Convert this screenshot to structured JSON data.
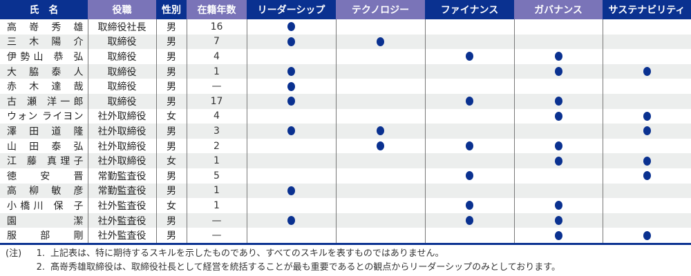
{
  "headers": [
    "氏　名",
    "役職",
    "性別",
    "在籍年数",
    "リーダーシップ",
    "テクノロジー",
    "ファイナンス",
    "ガバナンス",
    "サステナビリティ"
  ],
  "skills": [
    "leadership",
    "technology",
    "finance",
    "governance",
    "sustainability"
  ],
  "colors": {
    "header_dark": "#0a3190",
    "header_light": "#7a74b8",
    "dot": "#0a3190"
  },
  "rows": [
    {
      "name": "高 嵜 秀 雄",
      "role": "取締役社長",
      "gender": "男",
      "years": "16",
      "skills": [
        1,
        0,
        0,
        0,
        0
      ]
    },
    {
      "name": "三 木 陽 介",
      "role": "取締役",
      "gender": "男",
      "years": "7",
      "skills": [
        1,
        1,
        0,
        0,
        0
      ]
    },
    {
      "name": "伊勢山 恭 弘",
      "role": "取締役",
      "gender": "男",
      "years": "4",
      "skills": [
        0,
        0,
        1,
        1,
        0
      ]
    },
    {
      "name": "大 脇 泰 人",
      "role": "取締役",
      "gender": "男",
      "years": "1",
      "skills": [
        1,
        0,
        0,
        1,
        1
      ]
    },
    {
      "name": "赤 木 達 哉",
      "role": "取締役",
      "gender": "男",
      "years": "—",
      "skills": [
        1,
        0,
        0,
        0,
        0
      ]
    },
    {
      "name": "古 瀬 洋一郎",
      "role": "取締役",
      "gender": "男",
      "years": "17",
      "skills": [
        1,
        0,
        1,
        1,
        0
      ]
    },
    {
      "name": "ウォン ライヨン",
      "role": "社外取締役",
      "gender": "女",
      "years": "4",
      "skills": [
        0,
        0,
        0,
        1,
        1
      ]
    },
    {
      "name": "澤 田 道 隆",
      "role": "社外取締役",
      "gender": "男",
      "years": "3",
      "skills": [
        1,
        1,
        0,
        0,
        1
      ]
    },
    {
      "name": "山 田 泰 弘",
      "role": "社外取締役",
      "gender": "男",
      "years": "2",
      "skills": [
        0,
        1,
        1,
        1,
        0
      ]
    },
    {
      "name": "江 藤 真理子",
      "role": "社外取締役",
      "gender": "女",
      "years": "1",
      "skills": [
        0,
        0,
        0,
        1,
        1
      ]
    },
    {
      "name": "徳 安 晋",
      "role": "常勤監査役",
      "gender": "男",
      "years": "5",
      "skills": [
        0,
        0,
        1,
        0,
        1
      ]
    },
    {
      "name": "高 柳 敏 彦",
      "role": "常勤監査役",
      "gender": "男",
      "years": "1",
      "skills": [
        1,
        0,
        0,
        0,
        0
      ]
    },
    {
      "name": "小橋川 保 子",
      "role": "社外監査役",
      "gender": "女",
      "years": "1",
      "skills": [
        0,
        0,
        1,
        1,
        0
      ]
    },
    {
      "name": "園 潔",
      "role": "社外監査役",
      "gender": "男",
      "years": "—",
      "skills": [
        1,
        0,
        1,
        1,
        0
      ]
    },
    {
      "name": "服 部 剛",
      "role": "社外監査役",
      "gender": "男",
      "years": "—",
      "skills": [
        0,
        0,
        0,
        1,
        1
      ]
    }
  ],
  "notes": {
    "prefix": "(注)",
    "items": [
      {
        "num": "1.",
        "text": "上記表は、特に期待するスキルを示したものであり、すべてのスキルを表すものではありません。"
      },
      {
        "num": "2.",
        "text": "髙嵜秀雄取締役は、取締役社長として経営を統括することが最も重要であるとの観点からリーダーシップのみとしております。"
      }
    ]
  }
}
